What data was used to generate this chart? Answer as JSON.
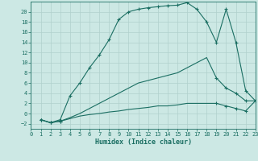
{
  "xlabel": "Humidex (Indice chaleur)",
  "bg_color": "#cce8e4",
  "grid_color": "#b0d0cc",
  "line_color": "#1a6e62",
  "xlim": [
    0,
    23
  ],
  "ylim": [
    -3,
    22
  ],
  "xticks": [
    0,
    1,
    2,
    3,
    4,
    5,
    6,
    7,
    8,
    9,
    10,
    11,
    12,
    13,
    14,
    15,
    16,
    17,
    18,
    19,
    20,
    21,
    22,
    23
  ],
  "yticks": [
    -2,
    0,
    2,
    4,
    6,
    8,
    10,
    12,
    14,
    16,
    18,
    20
  ],
  "curve1_x": [
    1,
    2,
    3,
    4,
    5,
    6,
    7,
    8,
    9,
    10,
    11,
    12,
    13,
    14,
    15,
    16,
    17,
    18,
    19,
    20,
    21,
    22,
    23
  ],
  "curve1_y": [
    -1.2,
    -1.8,
    -1.2,
    3.5,
    6.0,
    9.0,
    11.5,
    14.5,
    18.5,
    20.0,
    20.5,
    20.8,
    21.0,
    21.2,
    21.3,
    21.8,
    20.5,
    18.0,
    14.0,
    20.5,
    14.0,
    4.5,
    2.5
  ],
  "curve2_x": [
    1,
    2,
    3,
    4,
    5,
    6,
    7,
    8,
    9,
    10,
    11,
    12,
    13,
    14,
    15,
    16,
    17,
    18,
    19,
    20,
    21,
    22,
    23
  ],
  "curve2_y": [
    -1.2,
    -1.8,
    -1.5,
    -0.8,
    0.0,
    1.0,
    2.0,
    3.0,
    4.0,
    5.0,
    6.0,
    6.5,
    7.0,
    7.5,
    8.0,
    9.0,
    10.0,
    11.0,
    7.0,
    5.0,
    4.0,
    2.5,
    2.5
  ],
  "curve3_x": [
    1,
    2,
    3,
    4,
    5,
    6,
    7,
    8,
    9,
    10,
    11,
    12,
    13,
    14,
    15,
    16,
    17,
    18,
    19,
    20,
    21,
    22,
    23
  ],
  "curve3_y": [
    -1.2,
    -1.8,
    -1.5,
    -1.0,
    -0.5,
    -0.2,
    0.0,
    0.3,
    0.5,
    0.8,
    1.0,
    1.2,
    1.5,
    1.5,
    1.7,
    2.0,
    2.0,
    2.0,
    2.0,
    1.5,
    1.0,
    0.5,
    2.5
  ],
  "marker_x1": [
    1,
    2,
    3,
    4,
    5,
    6,
    7,
    8,
    9,
    10,
    11,
    12,
    13,
    14,
    15,
    16,
    17,
    18,
    19,
    20,
    21,
    22,
    23
  ],
  "marker_y1": [
    -1.2,
    -1.8,
    -1.2,
    3.5,
    6.0,
    9.0,
    11.5,
    14.5,
    18.5,
    20.0,
    20.5,
    20.8,
    21.0,
    21.2,
    21.3,
    21.8,
    20.5,
    18.0,
    14.0,
    20.5,
    14.0,
    4.5,
    2.5
  ],
  "marker_x2": [
    1,
    2,
    3,
    19,
    20,
    21,
    22,
    23
  ],
  "marker_y2": [
    -1.2,
    -1.8,
    -1.5,
    7.0,
    5.0,
    4.0,
    2.5,
    2.5
  ],
  "marker_x3": [
    1,
    2,
    3,
    19,
    20,
    21,
    22,
    23
  ],
  "marker_y3": [
    -1.2,
    -1.8,
    -1.5,
    2.0,
    1.5,
    1.0,
    0.5,
    2.5
  ]
}
